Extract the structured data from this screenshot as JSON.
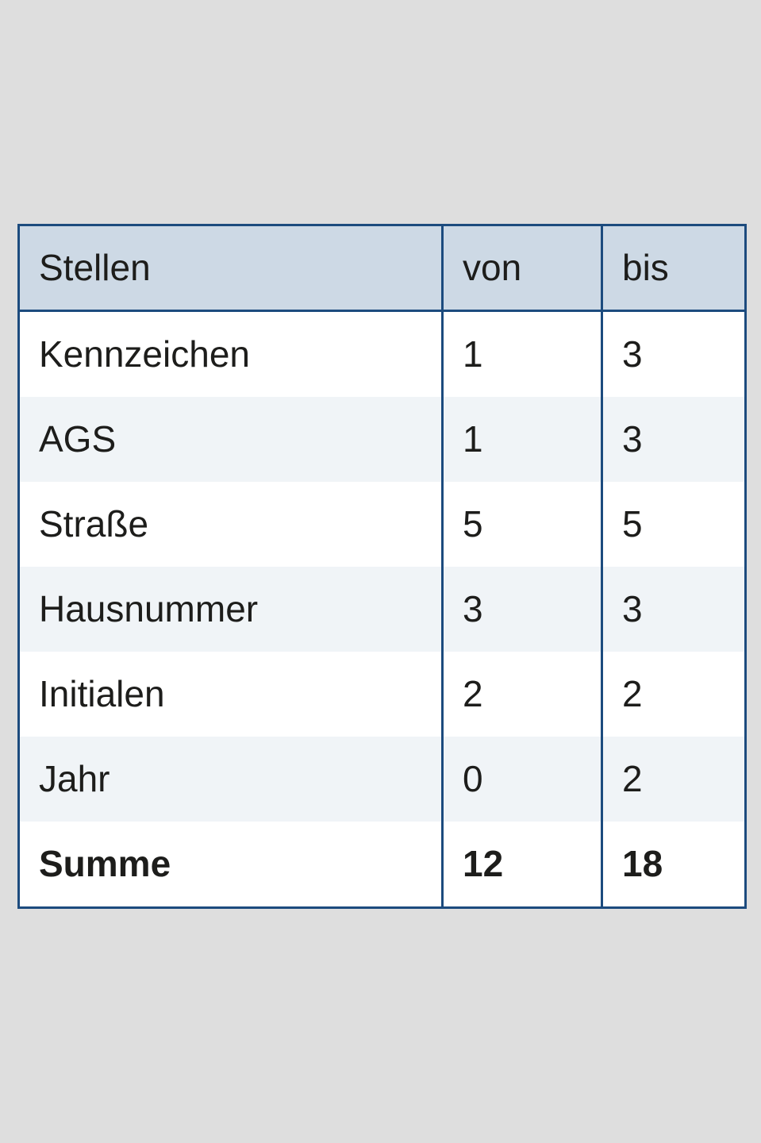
{
  "page": {
    "background_color": "#dedede"
  },
  "table": {
    "columns": [
      "Stellen",
      "von",
      "bis"
    ],
    "rows": [
      {
        "label": "Kennzeichen",
        "von": "1",
        "bis": "3"
      },
      {
        "label": "AGS",
        "von": "1",
        "bis": "3"
      },
      {
        "label": "Straße",
        "von": "5",
        "bis": "5"
      },
      {
        "label": "Hausnummer",
        "von": "3",
        "bis": "3"
      },
      {
        "label": "Initialen",
        "von": "2",
        "bis": "2"
      },
      {
        "label": "Jahr",
        "von": "0",
        "bis": "2"
      },
      {
        "label": "Summe",
        "von": "12",
        "bis": "18"
      }
    ],
    "colors": {
      "border": "#1c4b7e",
      "header_background": "#cdd9e5",
      "row_background": "#ffffff",
      "alternate_row_background": "#f0f4f7",
      "page_background": "#dedede",
      "text": "#1d1d1b"
    }
  },
  "chart_data": {
    "type": "table",
    "columns": [
      "Stellen",
      "von",
      "bis"
    ],
    "rows": [
      [
        "Kennzeichen",
        1,
        3
      ],
      [
        "AGS",
        1,
        3
      ],
      [
        "Straße",
        5,
        5
      ],
      [
        "Hausnummer",
        3,
        3
      ],
      [
        "Initialen",
        2,
        2
      ],
      [
        "Jahr",
        0,
        2
      ],
      [
        "Summe",
        12,
        18
      ]
    ]
  }
}
